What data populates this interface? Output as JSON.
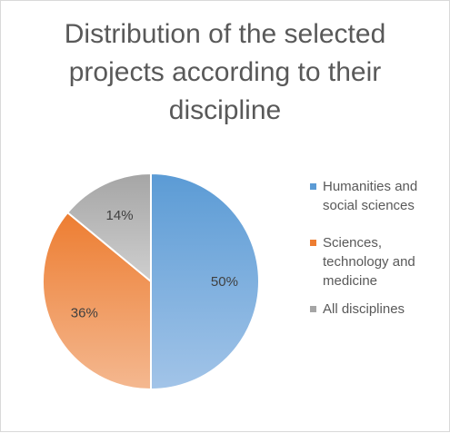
{
  "chart_data": {
    "type": "pie",
    "title_lines": [
      "Distribution of the selected",
      "projects according to their",
      "discipline"
    ],
    "categories": [
      "Humanities and social sciences",
      "Sciences, technology and medicine",
      "All disciplines"
    ],
    "legend_lines": [
      [
        "Humanities and",
        "social sciences"
      ],
      [
        "Sciences,",
        "technology and",
        "medicine"
      ],
      [
        "All disciplines"
      ]
    ],
    "values": [
      50,
      36,
      14
    ],
    "data_labels": [
      "50%",
      "36%",
      "14%"
    ],
    "colors": [
      "#5b9bd5",
      "#ed7d31",
      "#a5a5a5"
    ],
    "legend_position": "right"
  }
}
